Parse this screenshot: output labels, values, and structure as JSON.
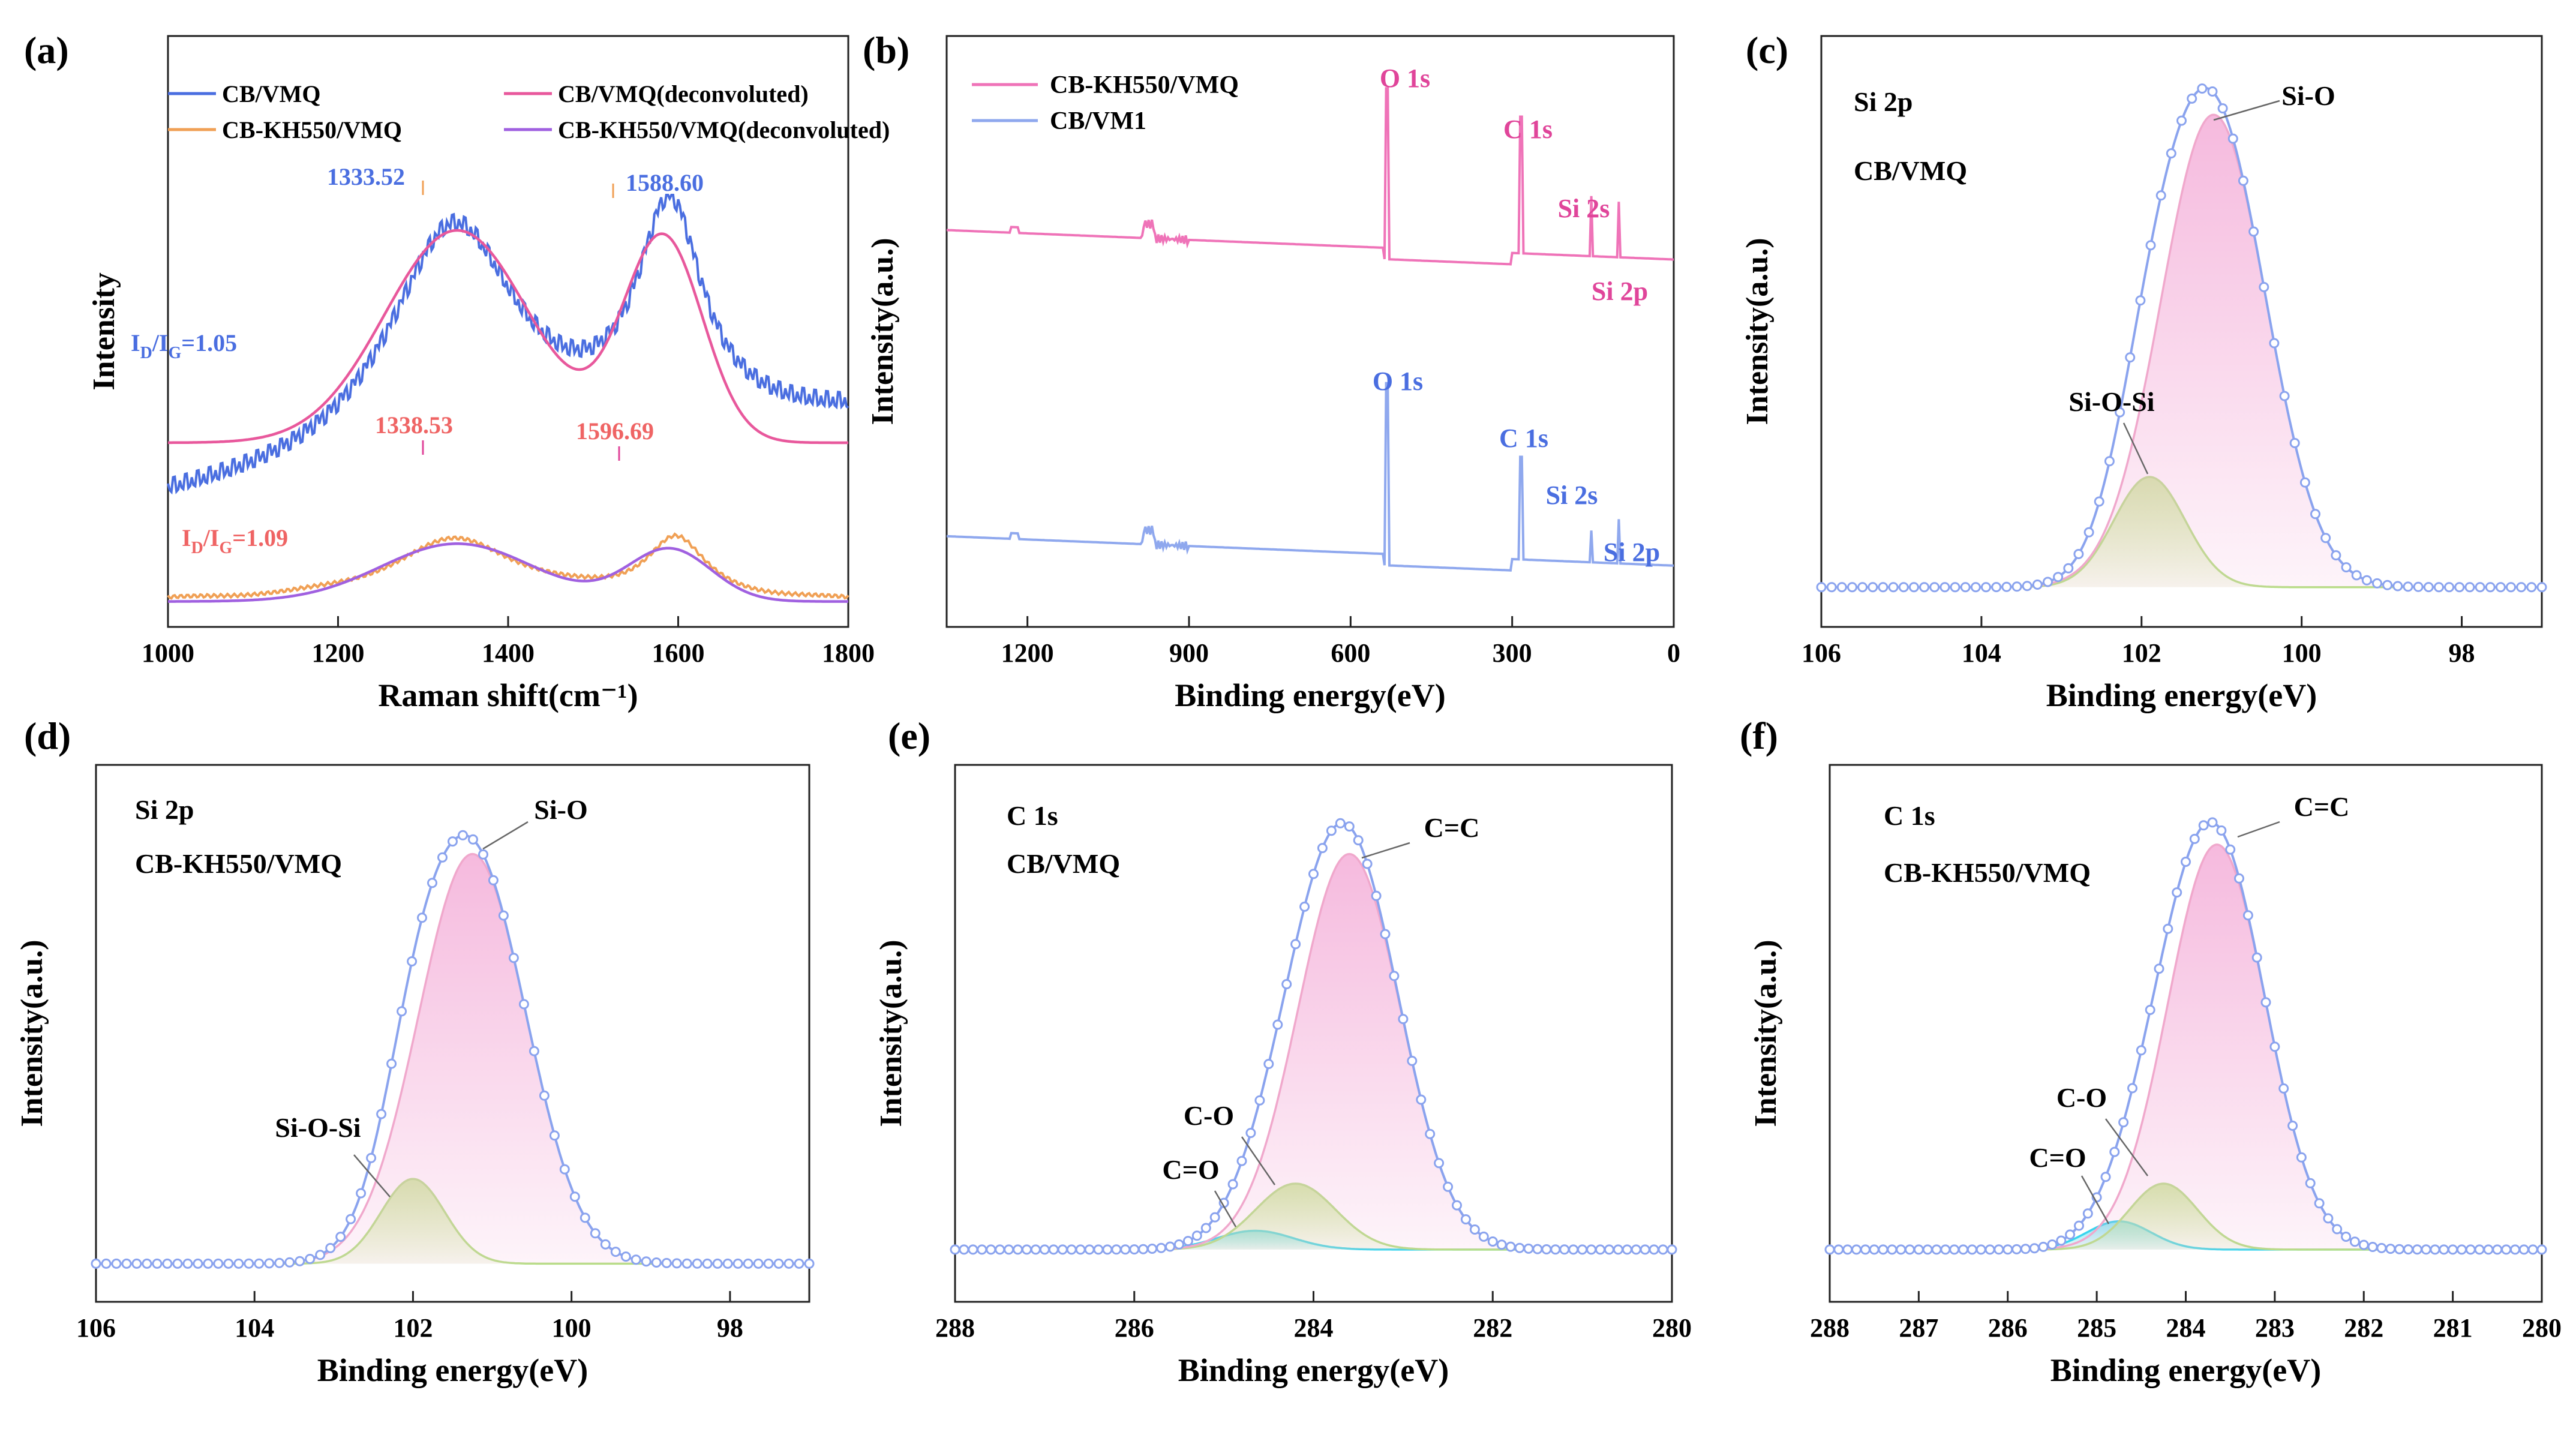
{
  "colors": {
    "cb_vmq": "#4a6ee0",
    "cb_vmq_fit": "#e8589c",
    "kh550": "#f0a055",
    "kh550_fit": "#a060e0",
    "b_top": "#ef73b8",
    "b_bottom": "#8fa8ee",
    "fit_raw": "#8aa3ee",
    "sio_fill": "#f5b6dc",
    "sio_line": "#f0a8cc",
    "siosi_fill": "#c8eb96",
    "siosi_line": "#b4df82",
    "co_fill": "#c8eb96",
    "cdo_fill": "#7fe6f0",
    "cdo_line": "#39d4ee",
    "raman_blue_text": "#4a6ee0",
    "raman_red_text": "#ef6464",
    "xps_pink_text": "#e0459a",
    "xps_blue_text": "#4a6ee0"
  },
  "chart_data": [
    {
      "panel": "(a)",
      "type": "line",
      "xlabel": "Raman shift(cm⁻¹)",
      "ylabel": "Intensity",
      "xlim": [
        1000,
        1800
      ],
      "x_ticks": [
        "1000",
        "1200",
        "1400",
        "1600",
        "1800"
      ],
      "legend": [
        "CB/VMQ",
        "CB/VMQ(deconvoluted)",
        "CB-KH550/VMQ",
        "CB-KH550/VMQ(deconvoluted)"
      ],
      "peak_labels": [
        {
          "text": "1333.52",
          "x": 1333.52,
          "series": "CB/VMQ"
        },
        {
          "text": "1588.60",
          "x": 1588.6,
          "series": "CB/VMQ"
        },
        {
          "text": "1338.53",
          "x": 1338.53,
          "series": "CB-KH550/VMQ"
        },
        {
          "text": "1596.69",
          "x": 1596.69,
          "series": "CB-KH550/VMQ"
        }
      ],
      "ratios": [
        {
          "prefix": "I",
          "sub1": "D",
          "mid": "/I",
          "sub2": "G",
          "value": "=1.05",
          "series": "CB/VMQ"
        },
        {
          "prefix": "I",
          "sub1": "D",
          "mid": "/I",
          "sub2": "G",
          "value": "=1.09",
          "series": "CB-KH550/VMQ"
        }
      ],
      "series": [
        {
          "name": "CB/VMQ",
          "x": [
            1000,
            1200,
            1333.52,
            1480,
            1588.6,
            1800
          ],
          "y": [
            0.18,
            0.34,
            0.97,
            0.33,
            0.95,
            0.38
          ]
        },
        {
          "name": "CB/VMQ(deconvoluted)",
          "x": [
            1000,
            1200,
            1340,
            1480,
            1582,
            1800
          ],
          "y": [
            0.3,
            0.46,
            0.91,
            0.36,
            0.88,
            0.3
          ]
        },
        {
          "name": "CB-KH550/VMQ",
          "x": [
            1000,
            1200,
            1338.53,
            1490,
            1596.69,
            1800
          ],
          "y": [
            0.02,
            0.12,
            0.48,
            0.06,
            0.43,
            0.01
          ]
        },
        {
          "name": "CB-KH550/VMQ(deconvoluted)",
          "x": [
            1000,
            1200,
            1340,
            1490,
            1590,
            1800
          ],
          "y": [
            0.02,
            0.12,
            0.42,
            0.05,
            0.38,
            0.01
          ]
        }
      ]
    },
    {
      "panel": "(b)",
      "type": "line",
      "xlabel": "Binding energy(eV)",
      "ylabel": "Intensity(a.u.)",
      "xlim": [
        1350,
        0
      ],
      "x_ticks": [
        "1200",
        "900",
        "600",
        "300",
        "0"
      ],
      "legend": [
        "CB-KH550/VMQ",
        "CB/VM1"
      ],
      "peaks": [
        {
          "label": "O 1s",
          "x": 532
        },
        {
          "label": "C 1s",
          "x": 284.5
        },
        {
          "label": "Si 2s",
          "x": 153
        },
        {
          "label": "Si 2p",
          "x": 102
        }
      ],
      "series": [
        {
          "name": "CB-KH550/VMQ",
          "baseline": 0.65,
          "peak_heights": [
            0.97,
            0.9,
            0.76,
            0.75
          ]
        },
        {
          "name": "CB/VM1",
          "baseline": 0.11,
          "peak_heights": [
            0.45,
            0.3,
            0.17,
            0.19
          ]
        }
      ]
    },
    {
      "panel": "(c)",
      "type": "line",
      "xlabel": "Binding energy(eV)",
      "ylabel": "Intensity(a.u.)",
      "xlim": [
        106,
        97
      ],
      "x_ticks": [
        "106",
        "104",
        "102",
        "100",
        "98"
      ],
      "annotations": [
        "Si 2p",
        "CB/VMQ"
      ],
      "components": [
        {
          "name": "Si-O",
          "center": 101.1,
          "fwhm": 1.55,
          "height": 0.9
        },
        {
          "name": "Si-O-Si",
          "center": 101.9,
          "fwhm": 1.05,
          "height": 0.21
        }
      ],
      "baseline": 0.03
    },
    {
      "panel": "(d)",
      "type": "line",
      "xlabel": "Binding energy(eV)",
      "ylabel": "Intensity(a.u.)",
      "xlim": [
        106,
        97
      ],
      "x_ticks": [
        "106",
        "104",
        "102",
        "100",
        "98"
      ],
      "annotations": [
        "Si 2p",
        "CB-KH550/VMQ"
      ],
      "components": [
        {
          "name": "Si-O",
          "center": 101.25,
          "fwhm": 1.6,
          "height": 0.87
        },
        {
          "name": "Si-O-Si",
          "center": 102.0,
          "fwhm": 0.95,
          "height": 0.18
        }
      ],
      "baseline": 0.03
    },
    {
      "panel": "(e)",
      "type": "line",
      "xlabel": "Binding energy(eV)",
      "ylabel": "Intensity(a.u.)",
      "xlim": [
        288,
        280
      ],
      "x_ticks": [
        "288",
        "286",
        "284",
        "282",
        "280"
      ],
      "annotations": [
        "C 1s",
        "CB/VMQ"
      ],
      "components": [
        {
          "name": "C=C",
          "center": 283.6,
          "fwhm": 1.35,
          "height": 0.84
        },
        {
          "name": "C-O",
          "center": 284.2,
          "fwhm": 1.05,
          "height": 0.14
        },
        {
          "name": "C=O",
          "center": 284.65,
          "fwhm": 1.0,
          "height": 0.04
        }
      ],
      "baseline": 0.06
    },
    {
      "panel": "(f)",
      "type": "line",
      "xlabel": "Binding energy(eV)",
      "ylabel": "Intensity(a.u.)",
      "xlim": [
        288,
        280
      ],
      "x_ticks": [
        "288",
        "287",
        "286",
        "285",
        "284",
        "283",
        "282",
        "281",
        "280"
      ],
      "annotations": [
        "C 1s",
        "CB-KH550/VMQ"
      ],
      "components": [
        {
          "name": "C=C",
          "center": 283.65,
          "fwhm": 1.3,
          "height": 0.86
        },
        {
          "name": "C-O",
          "center": 284.25,
          "fwhm": 0.9,
          "height": 0.14
        },
        {
          "name": "C=O",
          "center": 284.75,
          "fwhm": 0.85,
          "height": 0.06
        }
      ],
      "baseline": 0.06
    }
  ]
}
